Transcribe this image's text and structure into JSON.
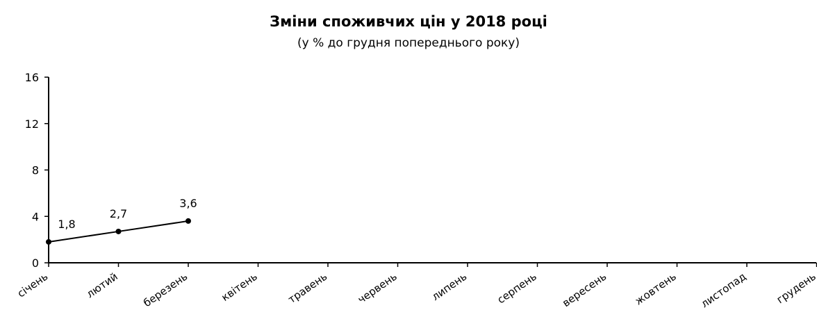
{
  "chart_data": {
    "type": "line",
    "title": "Зміни споживчих цін у 2018 році",
    "subtitle": "(у % до грудня попереднього року)",
    "categories": [
      "січень",
      "лютий",
      "березень",
      "квітень",
      "травень",
      "червень",
      "липень",
      "серпень",
      "вересень",
      "жовтень",
      "листопад",
      "грудень"
    ],
    "series": [
      {
        "values": [
          1.8,
          2.7,
          3.6,
          null,
          null,
          null,
          null,
          null,
          null,
          null,
          null,
          null
        ]
      }
    ],
    "data_labels": [
      "1,8",
      "2,7",
      "3,6"
    ],
    "y_ticks": [
      "0",
      "4",
      "8",
      "12",
      "16"
    ],
    "ylim": [
      0,
      16
    ],
    "grid": false,
    "legend": "none"
  }
}
